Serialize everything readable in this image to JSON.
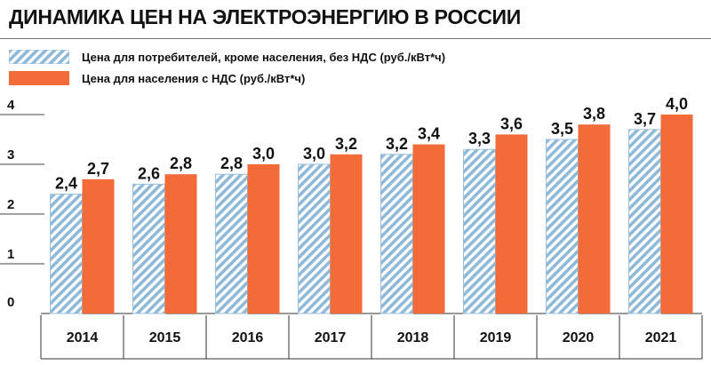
{
  "chart_data": {
    "type": "bar",
    "title": "ДИНАМИКА ЦЕН НА ЭЛЕКТРОЭНЕРГИЮ В РОССИИ",
    "categories": [
      "2014",
      "2015",
      "2016",
      "2017",
      "2018",
      "2019",
      "2020",
      "2021"
    ],
    "series": [
      {
        "name": "Цена для потребителей, кроме населения, без НДС (руб./кВт*ч)",
        "values": [
          2.4,
          2.6,
          2.8,
          3.0,
          3.2,
          3.3,
          3.5,
          3.7
        ],
        "labels": [
          "2,4",
          "2,6",
          "2,8",
          "3,0",
          "3,2",
          "3,3",
          "3,5",
          "3,7"
        ],
        "color": "#8fb9d8",
        "pattern": "diagonal-hatch"
      },
      {
        "name": "Цена для населения с НДС (руб./кВт*ч)",
        "values": [
          2.7,
          2.8,
          3.0,
          3.2,
          3.4,
          3.6,
          3.8,
          4.0
        ],
        "labels": [
          "2,7",
          "2,8",
          "3,0",
          "3,2",
          "3,4",
          "3,6",
          "3,8",
          "4,0"
        ],
        "color": "#f26b38"
      }
    ],
    "yticks": [
      "0",
      "1",
      "2",
      "3",
      "4"
    ],
    "ylim": [
      0,
      4
    ],
    "xlabel": "",
    "ylabel": "",
    "grid": false,
    "legend_position": "top-left"
  }
}
